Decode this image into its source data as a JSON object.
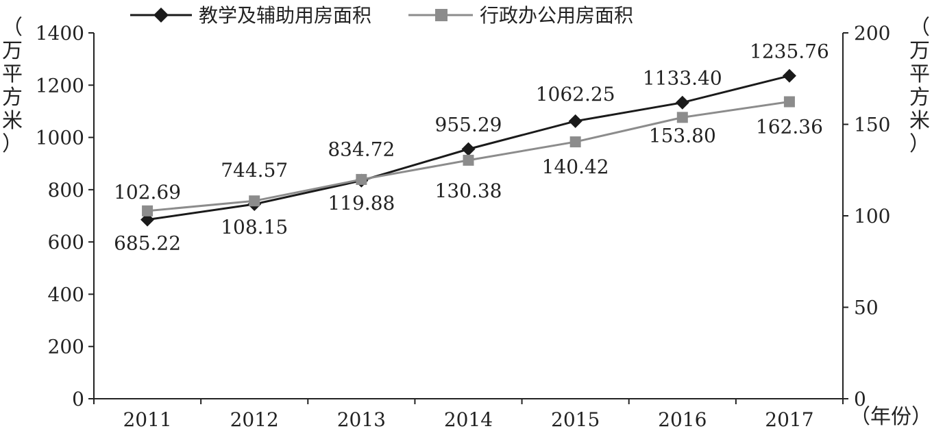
{
  "chart_data": {
    "type": "line",
    "categories": [
      "2011",
      "2012",
      "2013",
      "2014",
      "2015",
      "2016",
      "2017"
    ],
    "series": [
      {
        "name": "教学及辅助用房面积",
        "axis": "left",
        "color": "#1a1a1a",
        "marker": "diamond",
        "values": [
          685.22,
          744.57,
          834.72,
          955.29,
          1062.25,
          1133.4,
          1235.76
        ],
        "labels": [
          "685.22",
          "744.57",
          "834.72",
          "955.29",
          "1062.25",
          "1133.40",
          "1235.76"
        ]
      },
      {
        "name": "行政办公用房面积",
        "axis": "right",
        "color": "#8c8c8c",
        "marker": "square",
        "values": [
          102.69,
          108.15,
          119.88,
          130.38,
          140.42,
          153.8,
          162.36
        ],
        "labels": [
          "102.69",
          "108.15",
          "119.88",
          "130.38",
          "140.42",
          "153.80",
          "162.36"
        ]
      }
    ],
    "y_left": {
      "label": "（万平方米）",
      "ylim": [
        0,
        1400
      ],
      "ticks": [
        "0",
        "200",
        "400",
        "600",
        "800",
        "1000",
        "1200",
        "1400"
      ]
    },
    "y_right": {
      "label": "（万平方米）",
      "ylim": [
        0,
        200
      ],
      "ticks": [
        "0",
        "50",
        "100",
        "150",
        "200"
      ]
    },
    "x_unit": "（年份）",
    "grid": false,
    "legend_position": "top"
  }
}
